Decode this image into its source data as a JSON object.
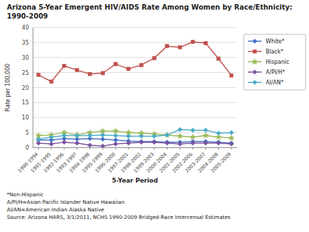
{
  "chart_data": {
    "type": "line",
    "title": "Arizona 5-Year Emergent HIV/AIDS Rate Among Women by Race/Ethnicity:\n1990-2009",
    "x_label": "5-Year Period",
    "y_label": "Rate per 100,000",
    "categories": [
      "1990-1994",
      "1991-1995",
      "1992-1996",
      "1993-1997",
      "1994-1998",
      "1995-1999",
      "1996-2000",
      "1997-2001",
      "1998-2002",
      "1999-2003",
      "2000-2004",
      "2001-2005",
      "2002-2006",
      "2003-2007",
      "2004-2008",
      "2005-2009"
    ],
    "series": [
      {
        "name": "White*",
        "color": "#4472C4",
        "marker": "diamond",
        "values": [
          2.5,
          2.5,
          3.0,
          2.8,
          3.0,
          2.8,
          2.5,
          2.2,
          2.0,
          2.0,
          1.8,
          1.8,
          2.0,
          2.0,
          1.8,
          1.5
        ]
      },
      {
        "name": "Black*",
        "color": "#C0504D",
        "marker": "square",
        "values": [
          24.2,
          22.0,
          27.2,
          25.8,
          24.5,
          24.8,
          27.8,
          26.2,
          27.5,
          29.8,
          33.8,
          33.4,
          35.2,
          34.8,
          29.6,
          24.0
        ]
      },
      {
        "name": "Hispanic",
        "color": "#9BBB59",
        "marker": "star",
        "values": [
          4.0,
          4.2,
          5.0,
          4.2,
          5.0,
          5.5,
          5.5,
          5.0,
          4.8,
          4.5,
          4.2,
          3.8,
          3.5,
          4.0,
          3.5,
          3.2
        ]
      },
      {
        "name": "A/PI/H*",
        "color": "#7B52A0",
        "marker": "diamond",
        "values": [
          1.5,
          1.2,
          1.8,
          1.5,
          0.8,
          0.5,
          1.2,
          1.5,
          1.8,
          1.8,
          1.5,
          1.2,
          1.5,
          1.5,
          1.5,
          1.2
        ]
      },
      {
        "name": "AI/AN*",
        "color": "#4BACC6",
        "marker": "diamond",
        "values": [
          2.8,
          3.5,
          4.0,
          4.0,
          4.0,
          4.2,
          4.0,
          3.8,
          3.8,
          3.8,
          4.2,
          6.0,
          5.8,
          5.8,
          4.8,
          5.0
        ]
      }
    ],
    "ylim": [
      0,
      40
    ],
    "yticks": [
      0,
      5,
      10,
      15,
      20,
      25,
      30,
      35,
      40
    ],
    "grid": true,
    "legend": "right",
    "annotations": [
      "*Non-Hispanic\nA/PI/H=Asian Pacific Islander Native Hawaiian\nAI/AN=American Indian Alaska Native\nSource: Arizona HARS, 3/1/2011, NCHS 1990-2009 Bridged-Race Intercensal Estimates"
    ]
  }
}
